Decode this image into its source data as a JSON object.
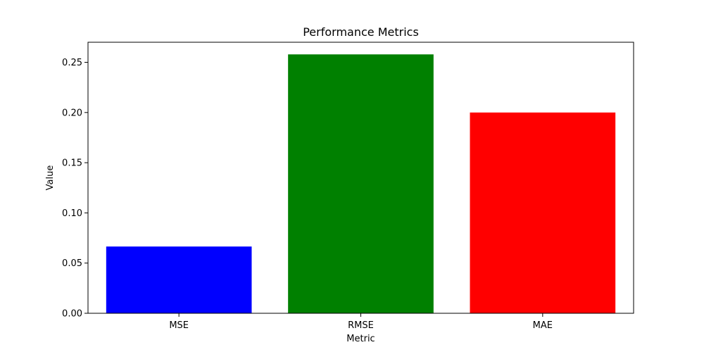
{
  "chart_data": {
    "type": "bar",
    "title": "Performance Metrics",
    "xlabel": "Metric",
    "ylabel": "Value",
    "categories": [
      "MSE",
      "RMSE",
      "MAE"
    ],
    "values": [
      0.0665,
      0.2579,
      0.2
    ],
    "colors": [
      "#0000ff",
      "#008000",
      "#ff0000"
    ],
    "ylim": [
      0,
      0.27
    ],
    "yticks": [
      0,
      0.05,
      0.1,
      0.15,
      0.2,
      0.25
    ],
    "ytick_labels": [
      "0.00",
      "0.05",
      "0.10",
      "0.15",
      "0.20",
      "0.25"
    ],
    "grid": false,
    "legend": "none"
  }
}
